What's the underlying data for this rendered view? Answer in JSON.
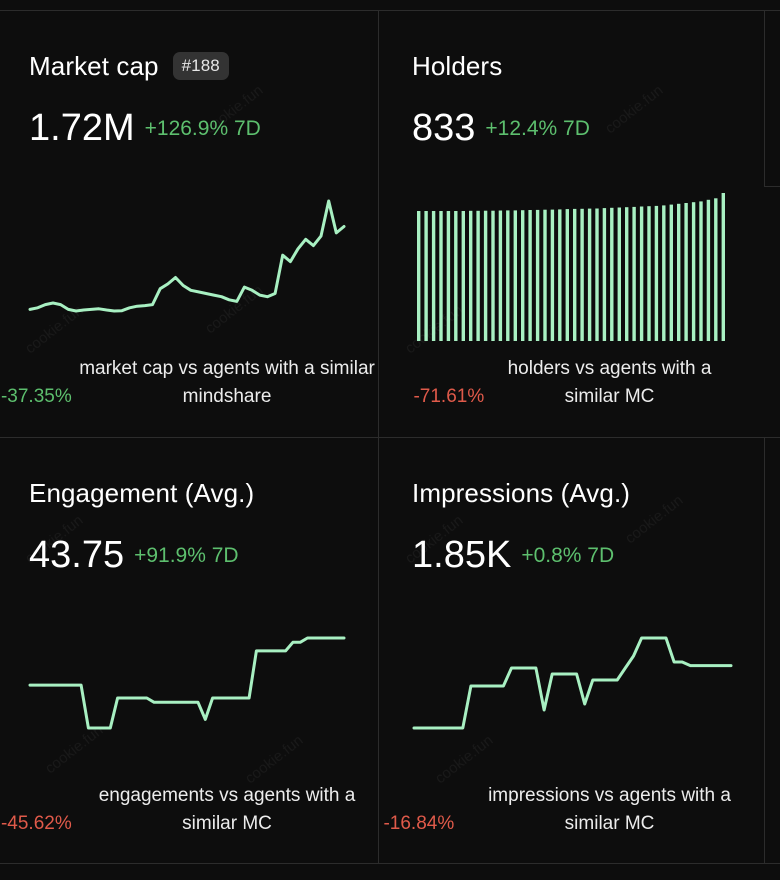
{
  "watermark": "cookie.fun",
  "colors": {
    "line": "#a8f0c2",
    "positive": "#5dbf6e",
    "negative": "#e05a4a"
  },
  "cards": {
    "market_cap": {
      "title": "Market cap",
      "rank": "#188",
      "value": "1.72M",
      "change": "+126.9% 7D",
      "footnote_pct": "-37.35%",
      "footnote_text": "market cap vs agents with a similar mindshare"
    },
    "holders": {
      "title": "Holders",
      "value": "833",
      "change": "+12.4% 7D",
      "footnote_pct": "-71.61%",
      "footnote_text": "holders vs agents with a similar MC"
    },
    "engagement": {
      "title": "Engagement (Avg.)",
      "value": "43.75",
      "change": "+91.9% 7D",
      "footnote_pct": "-45.62%",
      "footnote_text": "engagements vs agents with a similar MC"
    },
    "impressions": {
      "title": "Impressions (Avg.)",
      "value": "1.85K",
      "change": "+0.8% 7D",
      "footnote_pct": "-16.84%",
      "footnote_text": "impressions vs agents with a similar MC"
    }
  },
  "chart_data": [
    {
      "type": "line",
      "name": "market_cap_sparkline",
      "values": [
        0.9,
        0.95,
        1.05,
        1.1,
        1.05,
        0.9,
        0.85,
        0.88,
        0.9,
        0.92,
        0.88,
        0.85,
        0.86,
        0.95,
        1.0,
        1.02,
        1.05,
        1.55,
        1.7,
        1.9,
        1.65,
        1.5,
        1.45,
        1.4,
        1.35,
        1.3,
        1.2,
        1.15,
        1.6,
        1.5,
        1.35,
        1.3,
        1.4,
        2.6,
        2.4,
        2.8,
        3.1,
        2.9,
        3.2,
        4.3,
        3.3,
        3.5
      ]
    },
    {
      "type": "bar",
      "name": "holders_sparkline",
      "values": [
        720,
        720,
        720,
        720,
        720,
        720,
        720,
        721,
        721,
        722,
        722,
        723,
        724,
        724,
        725,
        726,
        727,
        728,
        729,
        730,
        732,
        733,
        734,
        735,
        736,
        738,
        740,
        742,
        744,
        746,
        748,
        750,
        752,
        755,
        760,
        765,
        770,
        775,
        780,
        790,
        800,
        833
      ]
    },
    {
      "type": "line",
      "name": "engagement_sparkline",
      "values": [
        30,
        30,
        30,
        30,
        30,
        30,
        30,
        30,
        20,
        20,
        20,
        20,
        27,
        27,
        27,
        27,
        27,
        26,
        26,
        26,
        26,
        26,
        26,
        26,
        22,
        27,
        27,
        27,
        27,
        27,
        27,
        38,
        38,
        38,
        38,
        38,
        40,
        40,
        41,
        41,
        41,
        41,
        41,
        41
      ]
    },
    {
      "type": "line",
      "name": "impressions_sparkline",
      "values": [
        1.1,
        1.1,
        1.1,
        1.1,
        1.1,
        1.1,
        1.1,
        1.45,
        1.45,
        1.45,
        1.45,
        1.45,
        1.6,
        1.6,
        1.6,
        1.6,
        1.25,
        1.55,
        1.55,
        1.55,
        1.55,
        1.3,
        1.5,
        1.5,
        1.5,
        1.5,
        1.6,
        1.7,
        1.85,
        1.85,
        1.85,
        1.85,
        1.65,
        1.65,
        1.62,
        1.62,
        1.62,
        1.62,
        1.62,
        1.62
      ]
    }
  ]
}
